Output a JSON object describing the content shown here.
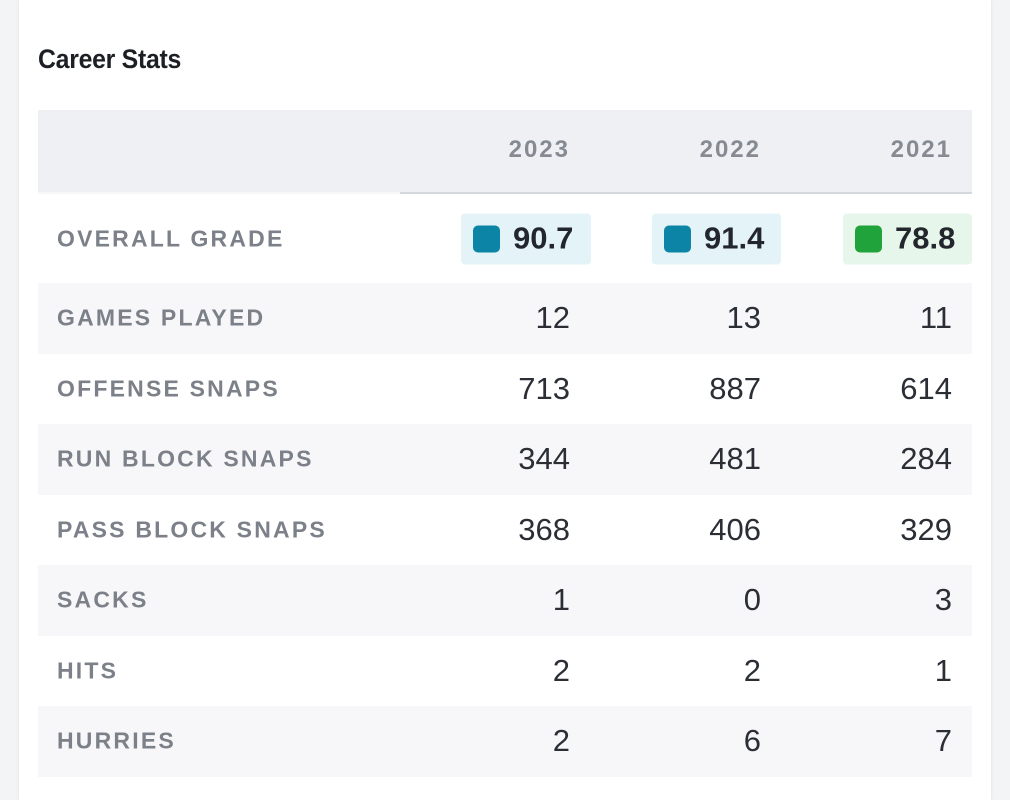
{
  "card": {
    "title": "Career Stats"
  },
  "table": {
    "columns": [
      "2023",
      "2022",
      "2021"
    ],
    "grade_row": {
      "label": "OVERALL GRADE",
      "values": [
        {
          "value": "90.7",
          "color": "#0b84a5",
          "bg": "#e4f3f7"
        },
        {
          "value": "91.4",
          "color": "#0b84a5",
          "bg": "#e4f3f7"
        },
        {
          "value": "78.8",
          "color": "#1fa33a",
          "bg": "#e6f6ea"
        }
      ]
    },
    "rows": [
      {
        "label": "GAMES PLAYED",
        "values": [
          "12",
          "13",
          "11"
        ]
      },
      {
        "label": "OFFENSE SNAPS",
        "values": [
          "713",
          "887",
          "614"
        ]
      },
      {
        "label": "RUN BLOCK SNAPS",
        "values": [
          "344",
          "481",
          "284"
        ]
      },
      {
        "label": "PASS BLOCK SNAPS",
        "values": [
          "368",
          "406",
          "329"
        ]
      },
      {
        "label": "SACKS",
        "values": [
          "1",
          "0",
          "3"
        ]
      },
      {
        "label": "HITS",
        "values": [
          "2",
          "2",
          "1"
        ]
      },
      {
        "label": "HURRIES",
        "values": [
          "2",
          "6",
          "7"
        ]
      }
    ]
  }
}
